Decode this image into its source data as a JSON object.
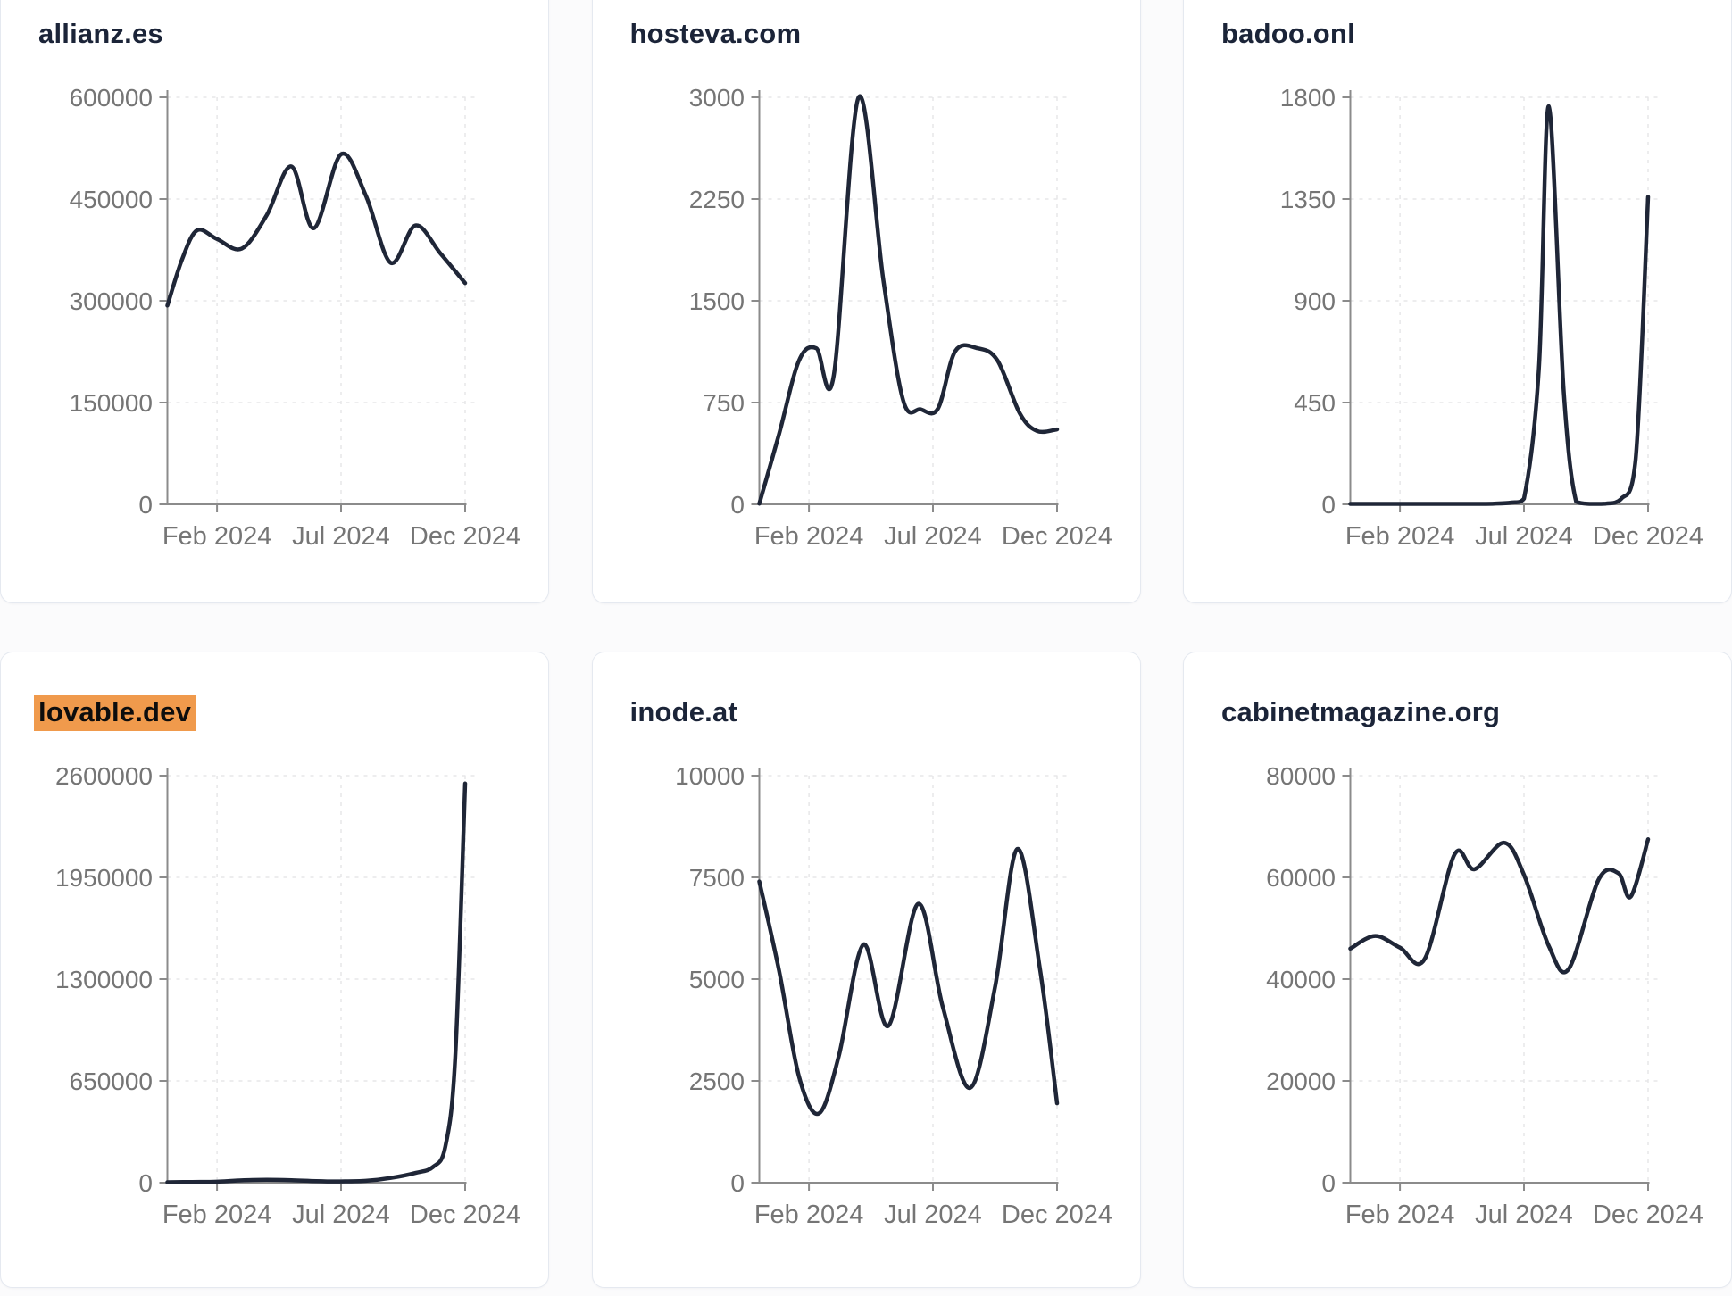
{
  "page": {
    "background": "#fbfbfc",
    "card_background": "#ffffff",
    "card_border": "#e5e9f0",
    "line_color": "#1f2637",
    "axis_color": "#8b8b8b",
    "tick_label_color": "#757575",
    "grid_color": "#e7e7e9",
    "title_color": "#1b2438",
    "highlight_color": "#f09a4c",
    "highlight_text_color": "#0d0d0d"
  },
  "chart_data": [
    {
      "id": "allianz-es",
      "title": "allianz.es",
      "highlighted": false,
      "type": "line",
      "grid": true,
      "legend": "none",
      "x_range_months": [
        "Dec 2023",
        "Dec 2024"
      ],
      "x_tick_labels": [
        "Feb 2024",
        "Jul 2024",
        "Dec 2024"
      ],
      "x_tick_months": [
        2,
        7,
        12
      ],
      "y_ticks": [
        0,
        150000,
        300000,
        450000,
        600000
      ],
      "ylim": [
        0,
        600000
      ],
      "points": [
        [
          0,
          293000
        ],
        [
          0.6,
          362000
        ],
        [
          1.2,
          404000
        ],
        [
          2,
          391000
        ],
        [
          3,
          377000
        ],
        [
          4,
          426000
        ],
        [
          5,
          498000
        ],
        [
          5.9,
          407000
        ],
        [
          7,
          516000
        ],
        [
          8,
          455000
        ],
        [
          9,
          356000
        ],
        [
          10,
          411000
        ],
        [
          11,
          370000
        ],
        [
          12,
          326000
        ]
      ]
    },
    {
      "id": "hosteva-com",
      "title": "hosteva.com",
      "highlighted": false,
      "type": "line",
      "grid": true,
      "legend": "none",
      "x_range_months": [
        "Dec 2023",
        "Dec 2024"
      ],
      "x_tick_labels": [
        "Feb 2024",
        "Jul 2024",
        "Dec 2024"
      ],
      "x_tick_months": [
        2,
        7,
        12
      ],
      "y_ticks": [
        0,
        750,
        1500,
        2250,
        3000
      ],
      "ylim": [
        0,
        3000
      ],
      "points": [
        [
          0,
          5
        ],
        [
          0.8,
          520
        ],
        [
          1.6,
          1060
        ],
        [
          2.3,
          1150
        ],
        [
          3,
          950
        ],
        [
          4,
          3000
        ],
        [
          5,
          1650
        ],
        [
          5.8,
          765
        ],
        [
          6.5,
          700
        ],
        [
          7.2,
          705
        ],
        [
          7.9,
          1130
        ],
        [
          8.8,
          1150
        ],
        [
          9.6,
          1060
        ],
        [
          10.5,
          670
        ],
        [
          11.2,
          540
        ],
        [
          12,
          552
        ]
      ]
    },
    {
      "id": "badoo-onl",
      "title": "badoo.onl",
      "highlighted": false,
      "type": "line",
      "grid": true,
      "legend": "none",
      "x_range_months": [
        "Dec 2023",
        "Dec 2024"
      ],
      "x_tick_labels": [
        "Feb 2024",
        "Jul 2024",
        "Dec 2024"
      ],
      "x_tick_months": [
        2,
        7,
        12
      ],
      "y_ticks": [
        0,
        450,
        900,
        1350,
        1800
      ],
      "ylim": [
        0,
        1800
      ],
      "points": [
        [
          0,
          2
        ],
        [
          1,
          2
        ],
        [
          2,
          2
        ],
        [
          3,
          2
        ],
        [
          4,
          2
        ],
        [
          5,
          2
        ],
        [
          5.8,
          3
        ],
        [
          6.5,
          8
        ],
        [
          7,
          25
        ],
        [
          7.6,
          600
        ],
        [
          8,
          1760
        ],
        [
          8.6,
          500
        ],
        [
          9.1,
          12
        ],
        [
          9.7,
          2
        ],
        [
          10.3,
          3
        ],
        [
          10.9,
          22
        ],
        [
          11.5,
          200
        ],
        [
          12,
          1360
        ]
      ]
    },
    {
      "id": "lovable-dev",
      "title": "lovable.dev",
      "highlighted": true,
      "type": "line",
      "grid": true,
      "legend": "none",
      "x_range_months": [
        "Dec 2023",
        "Dec 2024"
      ],
      "x_tick_labels": [
        "Feb 2024",
        "Jul 2024",
        "Dec 2024"
      ],
      "x_tick_months": [
        2,
        7,
        12
      ],
      "y_ticks": [
        0,
        650000,
        1300000,
        1950000,
        2600000
      ],
      "ylim": [
        0,
        2600000
      ],
      "points": [
        [
          0,
          3000
        ],
        [
          1,
          4500
        ],
        [
          2,
          6000
        ],
        [
          3,
          15000
        ],
        [
          4,
          18000
        ],
        [
          5,
          16000
        ],
        [
          6,
          10000
        ],
        [
          7,
          8000
        ],
        [
          8,
          12000
        ],
        [
          9,
          30000
        ],
        [
          10,
          62000
        ],
        [
          10.7,
          100000
        ],
        [
          11.2,
          230000
        ],
        [
          11.6,
          800000
        ],
        [
          12,
          2550000
        ]
      ]
    },
    {
      "id": "inode-at",
      "title": "inode.at",
      "highlighted": false,
      "type": "line",
      "grid": true,
      "legend": "none",
      "x_range_months": [
        "Dec 2023",
        "Dec 2024"
      ],
      "x_tick_labels": [
        "Feb 2024",
        "Jul 2024",
        "Dec 2024"
      ],
      "x_tick_months": [
        2,
        7,
        12
      ],
      "y_ticks": [
        0,
        2500,
        5000,
        7500,
        10000
      ],
      "ylim": [
        0,
        10000
      ],
      "points": [
        [
          0,
          7400
        ],
        [
          0.8,
          5200
        ],
        [
          1.6,
          2600
        ],
        [
          2.4,
          1700
        ],
        [
          3.2,
          3100
        ],
        [
          4.2,
          5850
        ],
        [
          5.2,
          3850
        ],
        [
          6.4,
          6850
        ],
        [
          7.4,
          4300
        ],
        [
          8.5,
          2330
        ],
        [
          9.5,
          4800
        ],
        [
          10.4,
          8200
        ],
        [
          11.3,
          5300
        ],
        [
          12,
          1950
        ]
      ]
    },
    {
      "id": "cabinetmagazine-org",
      "title": "cabinetmagazine.org",
      "highlighted": false,
      "type": "line",
      "grid": true,
      "legend": "none",
      "x_range_months": [
        "Dec 2023",
        "Dec 2024"
      ],
      "x_tick_labels": [
        "Feb 2024",
        "Jul 2024",
        "Dec 2024"
      ],
      "x_tick_months": [
        2,
        7,
        12
      ],
      "y_ticks": [
        0,
        20000,
        40000,
        60000,
        80000
      ],
      "ylim": [
        0,
        80000
      ],
      "points": [
        [
          0,
          46000
        ],
        [
          1,
          48500
        ],
        [
          2,
          46200
        ],
        [
          3,
          44000
        ],
        [
          4.2,
          64500
        ],
        [
          5,
          61600
        ],
        [
          6.2,
          66800
        ],
        [
          7,
          60500
        ],
        [
          8,
          46500
        ],
        [
          8.8,
          42000
        ],
        [
          10,
          59500
        ],
        [
          10.8,
          60800
        ],
        [
          11.3,
          56200
        ],
        [
          12,
          67500
        ]
      ]
    }
  ]
}
